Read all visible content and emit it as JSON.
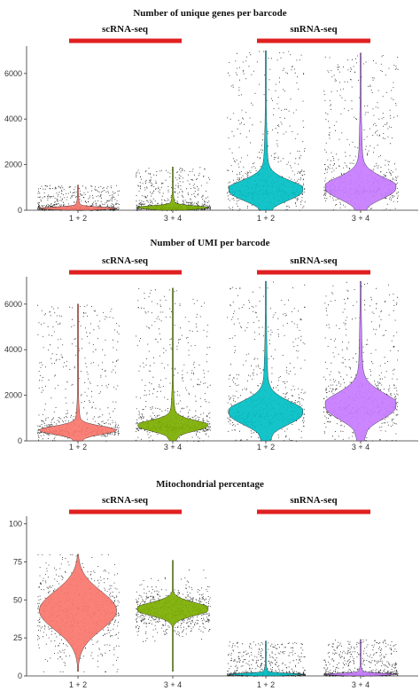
{
  "chart_data": [
    {
      "type": "violin",
      "title": "Number of unique genes per barcode",
      "ylim": [
        0,
        7200
      ],
      "yticks": [
        0,
        2000,
        4000,
        6000
      ],
      "categories": [
        "1 + 2",
        "3 + 4",
        "1 + 2",
        "3 + 4"
      ],
      "groups": [
        {
          "label": "scRNA-seq",
          "categories": [
            0,
            1
          ]
        },
        {
          "label": "snRNA-seq",
          "categories": [
            2,
            3
          ]
        }
      ],
      "series": [
        {
          "color": "#f8766d",
          "median": 80,
          "max": 1100,
          "spread": 160
        },
        {
          "color": "#7cae00",
          "median": 110,
          "max": 1900,
          "spread": 220
        },
        {
          "color": "#00bfc4",
          "median": 850,
          "max": 7000,
          "spread": 1200
        },
        {
          "color": "#c77cff",
          "median": 950,
          "max": 6900,
          "spread": 1300
        }
      ],
      "legend": "none",
      "grid": false
    },
    {
      "type": "violin",
      "title": "Number of UMI per barcode",
      "ylim": [
        0,
        7200
      ],
      "yticks": [
        0,
        2000,
        4000,
        6000
      ],
      "categories": [
        "1 + 2",
        "3 + 4",
        "1 + 2",
        "3 + 4"
      ],
      "groups": [
        {
          "label": "scRNA-seq",
          "categories": [
            0,
            1
          ]
        },
        {
          "label": "snRNA-seq",
          "categories": [
            2,
            3
          ]
        }
      ],
      "series": [
        {
          "color": "#f8766d",
          "median": 450,
          "max": 6000,
          "spread": 500
        },
        {
          "color": "#7cae00",
          "median": 650,
          "max": 6700,
          "spread": 650
        },
        {
          "color": "#00bfc4",
          "median": 1200,
          "max": 7000,
          "spread": 1400
        },
        {
          "color": "#c77cff",
          "median": 1500,
          "max": 7000,
          "spread": 1600
        }
      ],
      "legend": "none",
      "grid": false
    },
    {
      "type": "violin",
      "title": "Mitochondrial percentage",
      "ylim": [
        0,
        105
      ],
      "yticks": [
        0,
        25,
        50,
        75,
        100
      ],
      "categories": [
        "1 + 2",
        "3 + 4",
        "1 + 2",
        "3 + 4"
      ],
      "groups": [
        {
          "label": "scRNA-seq",
          "categories": [
            0,
            1
          ]
        },
        {
          "label": "snRNA-seq",
          "categories": [
            2,
            3
          ]
        }
      ],
      "series": [
        {
          "color": "#f8766d",
          "median": 43,
          "min": 3,
          "max": 80,
          "spread": 14
        },
        {
          "color": "#7cae00",
          "median": 44,
          "min": 3,
          "max": 76,
          "spread": 9
        },
        {
          "color": "#00bfc4",
          "median": 1,
          "min": 0,
          "max": 23,
          "spread": 2
        },
        {
          "color": "#c77cff",
          "median": 1,
          "min": 0,
          "max": 24,
          "spread": 2
        }
      ],
      "legend": "none",
      "grid": false
    }
  ],
  "colors": {
    "group_bar": "#e02020",
    "axis": "#333333"
  }
}
